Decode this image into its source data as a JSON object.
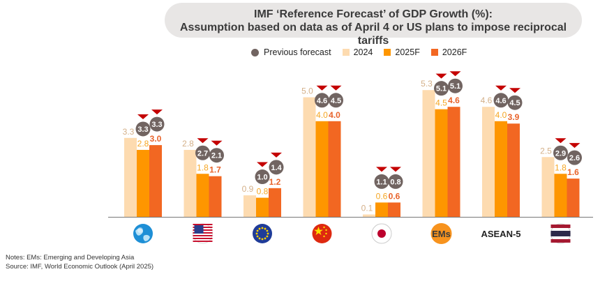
{
  "title": {
    "line1": "IMF ‘Reference Forecast’ of GDP Growth (%):",
    "line2": "Assumption based on data as of April 4 or US plans to impose reciprocal tariffs"
  },
  "colors": {
    "title_bg": "#e8e6e5",
    "prev": "#716461",
    "y2024": "#fddbb0",
    "y2025": "#fe9600",
    "y2026": "#f26722",
    "arrow": "#c40000"
  },
  "legend": [
    {
      "label": "Previous forecast",
      "kind": "dot",
      "color_key": "prev"
    },
    {
      "label": "2024",
      "kind": "square",
      "color_key": "y2024"
    },
    {
      "label": "2025F",
      "kind": "square",
      "color_key": "y2025"
    },
    {
      "label": "2026F",
      "kind": "square",
      "color_key": "y2026"
    }
  ],
  "chart_data": {
    "type": "bar",
    "categories": [
      "world-globe-icon",
      "usa-flag-icon",
      "eu-flag-icon",
      "china-flag-icon",
      "japan-flag-icon",
      "EMs",
      "ASEAN-5",
      "thailand-flag-icon"
    ],
    "category_labels": [
      "",
      "",
      "",
      "",
      "",
      "EMs",
      "ASEAN-5",
      ""
    ],
    "series": [
      {
        "name": "2024",
        "values": [
          3.3,
          2.8,
          0.9,
          5.0,
          0.1,
          5.3,
          4.6,
          2.5
        ]
      },
      {
        "name": "2025F",
        "values": [
          2.8,
          1.8,
          0.8,
          4.0,
          0.6,
          4.5,
          4.0,
          1.8
        ]
      },
      {
        "name": "2026F",
        "values": [
          3.0,
          1.7,
          1.2,
          4.0,
          0.6,
          4.6,
          3.9,
          1.6
        ]
      }
    ],
    "previous_forecast": {
      "name": "Previous forecast",
      "y2025": [
        3.3,
        2.7,
        1.0,
        4.6,
        1.1,
        5.1,
        4.6,
        2.9
      ],
      "y2026": [
        3.3,
        2.1,
        1.4,
        4.5,
        0.8,
        5.1,
        4.5,
        2.6
      ]
    },
    "ylim": [
      0,
      6.2
    ],
    "grid": false,
    "legend_position": "top"
  },
  "notes": {
    "line1": "Notes: EMs: Emerging and Developing Asia",
    "line2": "Source: IMF, World Economic Outlook (April 2025)"
  }
}
